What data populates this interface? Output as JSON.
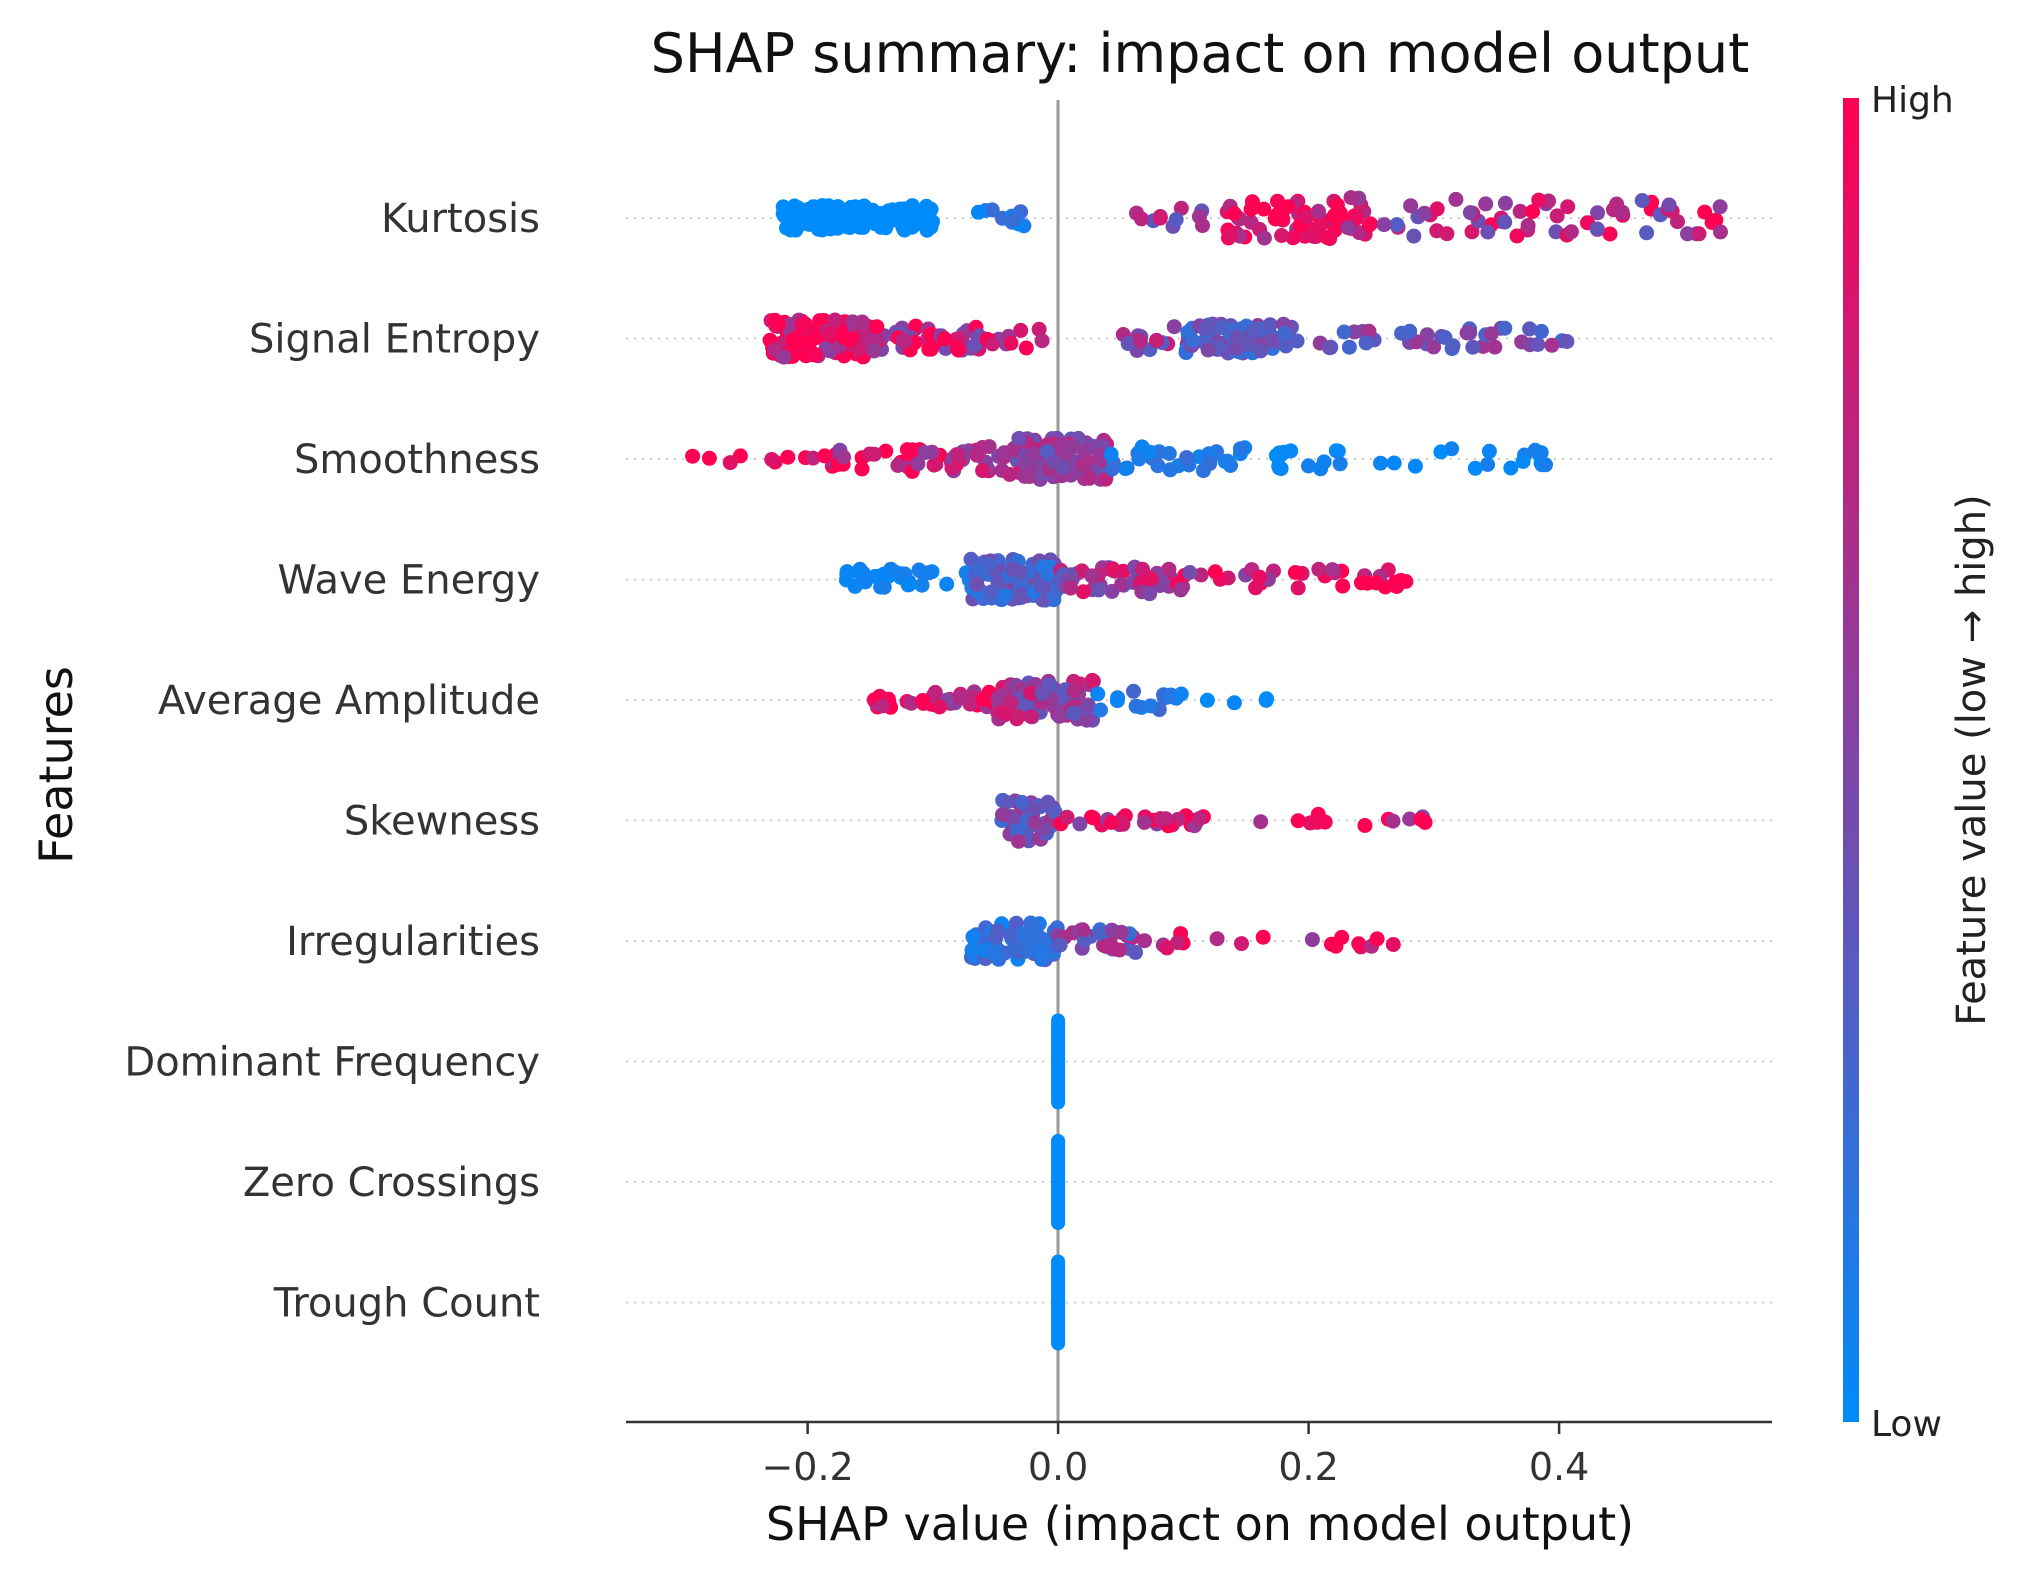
{
  "chart_data": {
    "type": "scatter",
    "subtype": "shap-beeswarm",
    "title": "SHAP summary: impact on model output",
    "xlabel": "SHAP value (impact on model output)",
    "ylabel": "Features",
    "xlim": [
      -0.345,
      0.57
    ],
    "xticks": [
      {
        "value": -0.2,
        "label": "−0.2"
      },
      {
        "value": 0.0,
        "label": "0.0"
      },
      {
        "value": 0.2,
        "label": "0.2"
      },
      {
        "value": 0.4,
        "label": "0.4"
      }
    ],
    "features": [
      {
        "name": "Kurtosis",
        "clusters": [
          [
            -0.22,
            -0.1,
            0.06,
            -0.05,
            25,
            0.1
          ],
          [
            -0.08,
            -0.02,
            0.045,
            0.15,
            4,
            0.25
          ],
          [
            0.06,
            0.12,
            0.06,
            0.55,
            4,
            0.55
          ],
          [
            0.13,
            0.25,
            0.1,
            0.9,
            10,
            0.7
          ],
          [
            0.25,
            0.53,
            0.09,
            0.7,
            4,
            0.75
          ]
        ]
      },
      {
        "name": "Signal Entropy",
        "clusters": [
          [
            -0.23,
            -0.15,
            0.09,
            1.0,
            26,
            0.95
          ],
          [
            -0.15,
            -0.06,
            0.06,
            0.78,
            13,
            0.8
          ],
          [
            -0.06,
            0.0,
            0.05,
            0.8,
            4,
            0.75
          ],
          [
            0.05,
            0.1,
            0.06,
            0.6,
            5,
            0.55
          ],
          [
            0.1,
            0.19,
            0.07,
            0.35,
            18,
            0.35
          ],
          [
            0.19,
            0.42,
            0.05,
            0.45,
            4,
            0.4
          ]
        ]
      },
      {
        "name": "Smoothness",
        "clusters": [
          [
            -0.31,
            -0.2,
            0.02,
            1.0,
            2,
            1.0
          ],
          [
            -0.2,
            -0.12,
            0.05,
            0.95,
            5,
            0.85
          ],
          [
            -0.12,
            -0.04,
            0.06,
            0.8,
            10,
            0.6
          ],
          [
            -0.04,
            0.04,
            0.1,
            0.55,
            22,
            0.45
          ],
          [
            0.04,
            0.15,
            0.06,
            0.15,
            6,
            0.2
          ],
          [
            0.17,
            0.4,
            0.05,
            0.05,
            3,
            0.1
          ]
        ]
      },
      {
        "name": "Wave Energy",
        "clusters": [
          [
            -0.17,
            -0.07,
            0.05,
            0.05,
            7,
            0.1
          ],
          [
            -0.07,
            0.0,
            0.1,
            0.3,
            26,
            0.35
          ],
          [
            0.0,
            0.06,
            0.06,
            0.6,
            10,
            0.6
          ],
          [
            0.06,
            0.12,
            0.07,
            0.8,
            8,
            0.75
          ],
          [
            0.12,
            0.29,
            0.05,
            1.0,
            4,
            0.95
          ]
        ]
      },
      {
        "name": "Average Amplitude",
        "clusters": [
          [
            -0.15,
            -0.05,
            0.04,
            1.0,
            8,
            0.95
          ],
          [
            -0.05,
            0.03,
            0.1,
            0.6,
            20,
            0.5
          ],
          [
            0.03,
            0.1,
            0.05,
            0.15,
            5,
            0.25
          ],
          [
            0.11,
            0.17,
            0.02,
            0.0,
            2,
            0.1
          ]
        ]
      },
      {
        "name": "Skewness",
        "clusters": [
          [
            -0.045,
            0.0,
            0.1,
            0.45,
            18,
            0.45
          ],
          [
            0.0,
            0.12,
            0.03,
            0.85,
            6,
            0.8
          ],
          [
            0.14,
            0.3,
            0.03,
            1.0,
            2,
            1.0
          ]
        ]
      },
      {
        "name": "Irregularities",
        "clusters": [
          [
            -0.07,
            0.0,
            0.09,
            0.2,
            20,
            0.3
          ],
          [
            0.0,
            0.07,
            0.06,
            0.45,
            8,
            0.55
          ],
          [
            0.07,
            0.1,
            0.04,
            0.85,
            4,
            0.8
          ],
          [
            0.12,
            0.27,
            0.03,
            1.0,
            2,
            1.0
          ]
        ]
      },
      {
        "name": "Dominant Frequency",
        "clusters": [
          [
            0.0,
            0.0,
            0.0,
            0.0,
            0,
            0.0
          ]
        ]
      },
      {
        "name": "Zero Crossings",
        "clusters": [
          [
            0.0,
            0.0,
            0.0,
            0.0,
            0,
            0.0
          ]
        ]
      },
      {
        "name": "Trough Count",
        "clusters": [
          [
            0.0,
            0.0,
            0.0,
            0.0,
            0,
            0.0
          ]
        ]
      }
    ],
    "cluster_fields": [
      "x_min",
      "x_max",
      "half_height",
      "color_value",
      "density",
      "color_spread"
    ],
    "colorbar": {
      "label": "Feature value (low → high)",
      "high_label": "High",
      "low_label": "Low",
      "low_color": "#008bfb",
      "high_color": "#ff0052"
    },
    "zero_line_color": "#999999",
    "grid": "dotted-rows"
  }
}
